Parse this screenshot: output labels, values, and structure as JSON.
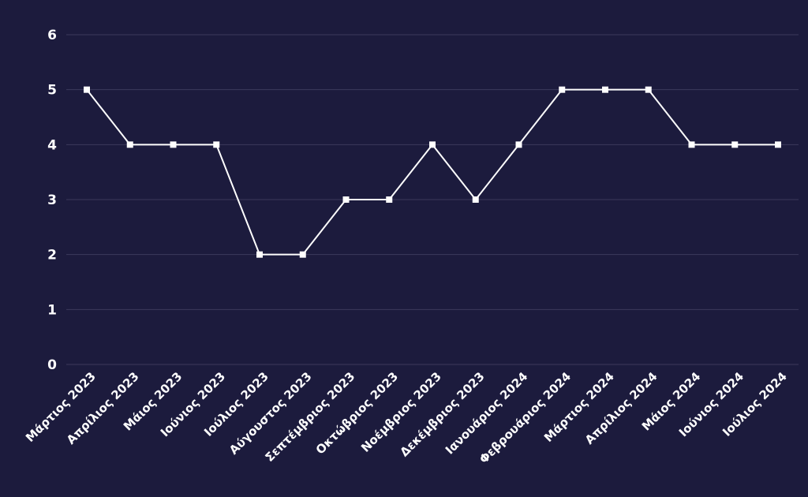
{
  "chart_data": {
    "type": "line",
    "categories": [
      "Μάρτιος 2023",
      "Απρίλιος 2023",
      "Μάιος 2023",
      "Ιούνιος 2023",
      "Ιούλιος 2023",
      "Αύγουστος 2023",
      "Σεπτέμβριος 2023",
      "Οκτώβριος 2023",
      "Νοέμβριος 2023",
      "Δεκέμβριος 2023",
      "Ιανουάριος 2024",
      "Φεβρουάριος 2024",
      "Μάρτιος 2024",
      "Απρίλιος 2024",
      "Μάιος 2024",
      "Ιούνιος 2024",
      "Ιούλιος 2024"
    ],
    "values": [
      5,
      4,
      4,
      4,
      2,
      2,
      3,
      3,
      4,
      3,
      4,
      5,
      5,
      5,
      4,
      4,
      4
    ],
    "ylim": [
      0,
      6
    ],
    "yticks": [
      0,
      1,
      2,
      3,
      4,
      5,
      6
    ],
    "grid": true,
    "colors": {
      "background": "#1c1b3d",
      "line": "#ffffff",
      "grid": "#3b3a5c",
      "text": "#ffffff"
    }
  }
}
